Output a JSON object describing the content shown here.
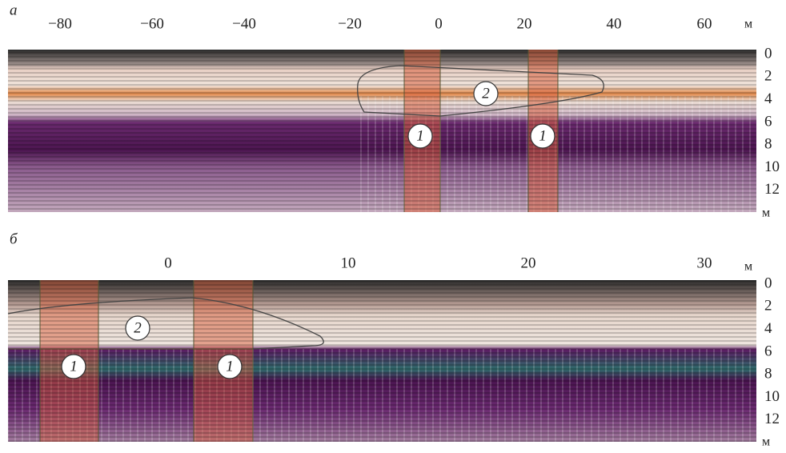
{
  "panels": [
    {
      "label": "а",
      "x_ticks": [
        "−80",
        "−60",
        "−40",
        "−20",
        "0",
        "20",
        "40",
        "60"
      ],
      "x_unit": "м",
      "y_ticks": [
        "0",
        "2",
        "4",
        "6",
        "8",
        "10",
        "12"
      ],
      "y_unit": "м",
      "annotations": [
        "2",
        "1",
        "1"
      ]
    },
    {
      "label": "б",
      "x_ticks": [
        "0",
        "10",
        "20",
        "30"
      ],
      "x_unit": "м",
      "y_ticks": [
        "0",
        "2",
        "4",
        "6",
        "8",
        "10",
        "12"
      ],
      "y_unit": "м",
      "annotations": [
        "2",
        "1",
        "1"
      ]
    }
  ]
}
